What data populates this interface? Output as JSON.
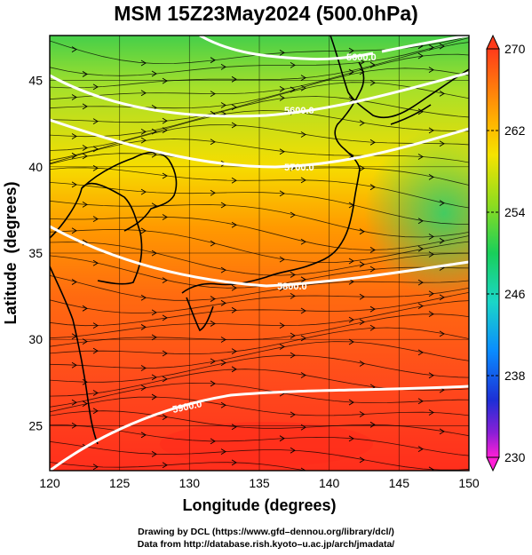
{
  "title": "MSM 15Z23May2024 (500.0hPa)",
  "axes": {
    "xlabel": "Longitude (degrees)",
    "ylabel": "Latitude  (degrees)",
    "xlim": [
      120,
      150
    ],
    "ylim": [
      22.4,
      47.6
    ],
    "x_ticks": [
      "120",
      "125",
      "130",
      "135",
      "140",
      "145",
      "150"
    ],
    "y_ticks": [
      "25",
      "30",
      "35",
      "40",
      "45"
    ]
  },
  "colorbar": {
    "range": [
      230,
      270
    ],
    "labels": [
      "270",
      "262",
      "254",
      "246",
      "238",
      "230"
    ]
  },
  "contours": [
    {
      "label": "5600.0"
    },
    {
      "label": "5600.0"
    },
    {
      "label": "5700.0"
    },
    {
      "label": "5800.0"
    },
    {
      "label": "5900.0"
    }
  ],
  "credits": {
    "line1": "Drawing by DCL (https://www.gfd–dennou.org/library/dcl/)",
    "line2": "Data from http://database.rish.kyoto–u.ac.jp/arch/jmadata/"
  },
  "colors": {
    "warm": "#ff3d1f",
    "mid": "#ffd500",
    "cool": "#3dd12a",
    "contour": "#ffffff"
  }
}
